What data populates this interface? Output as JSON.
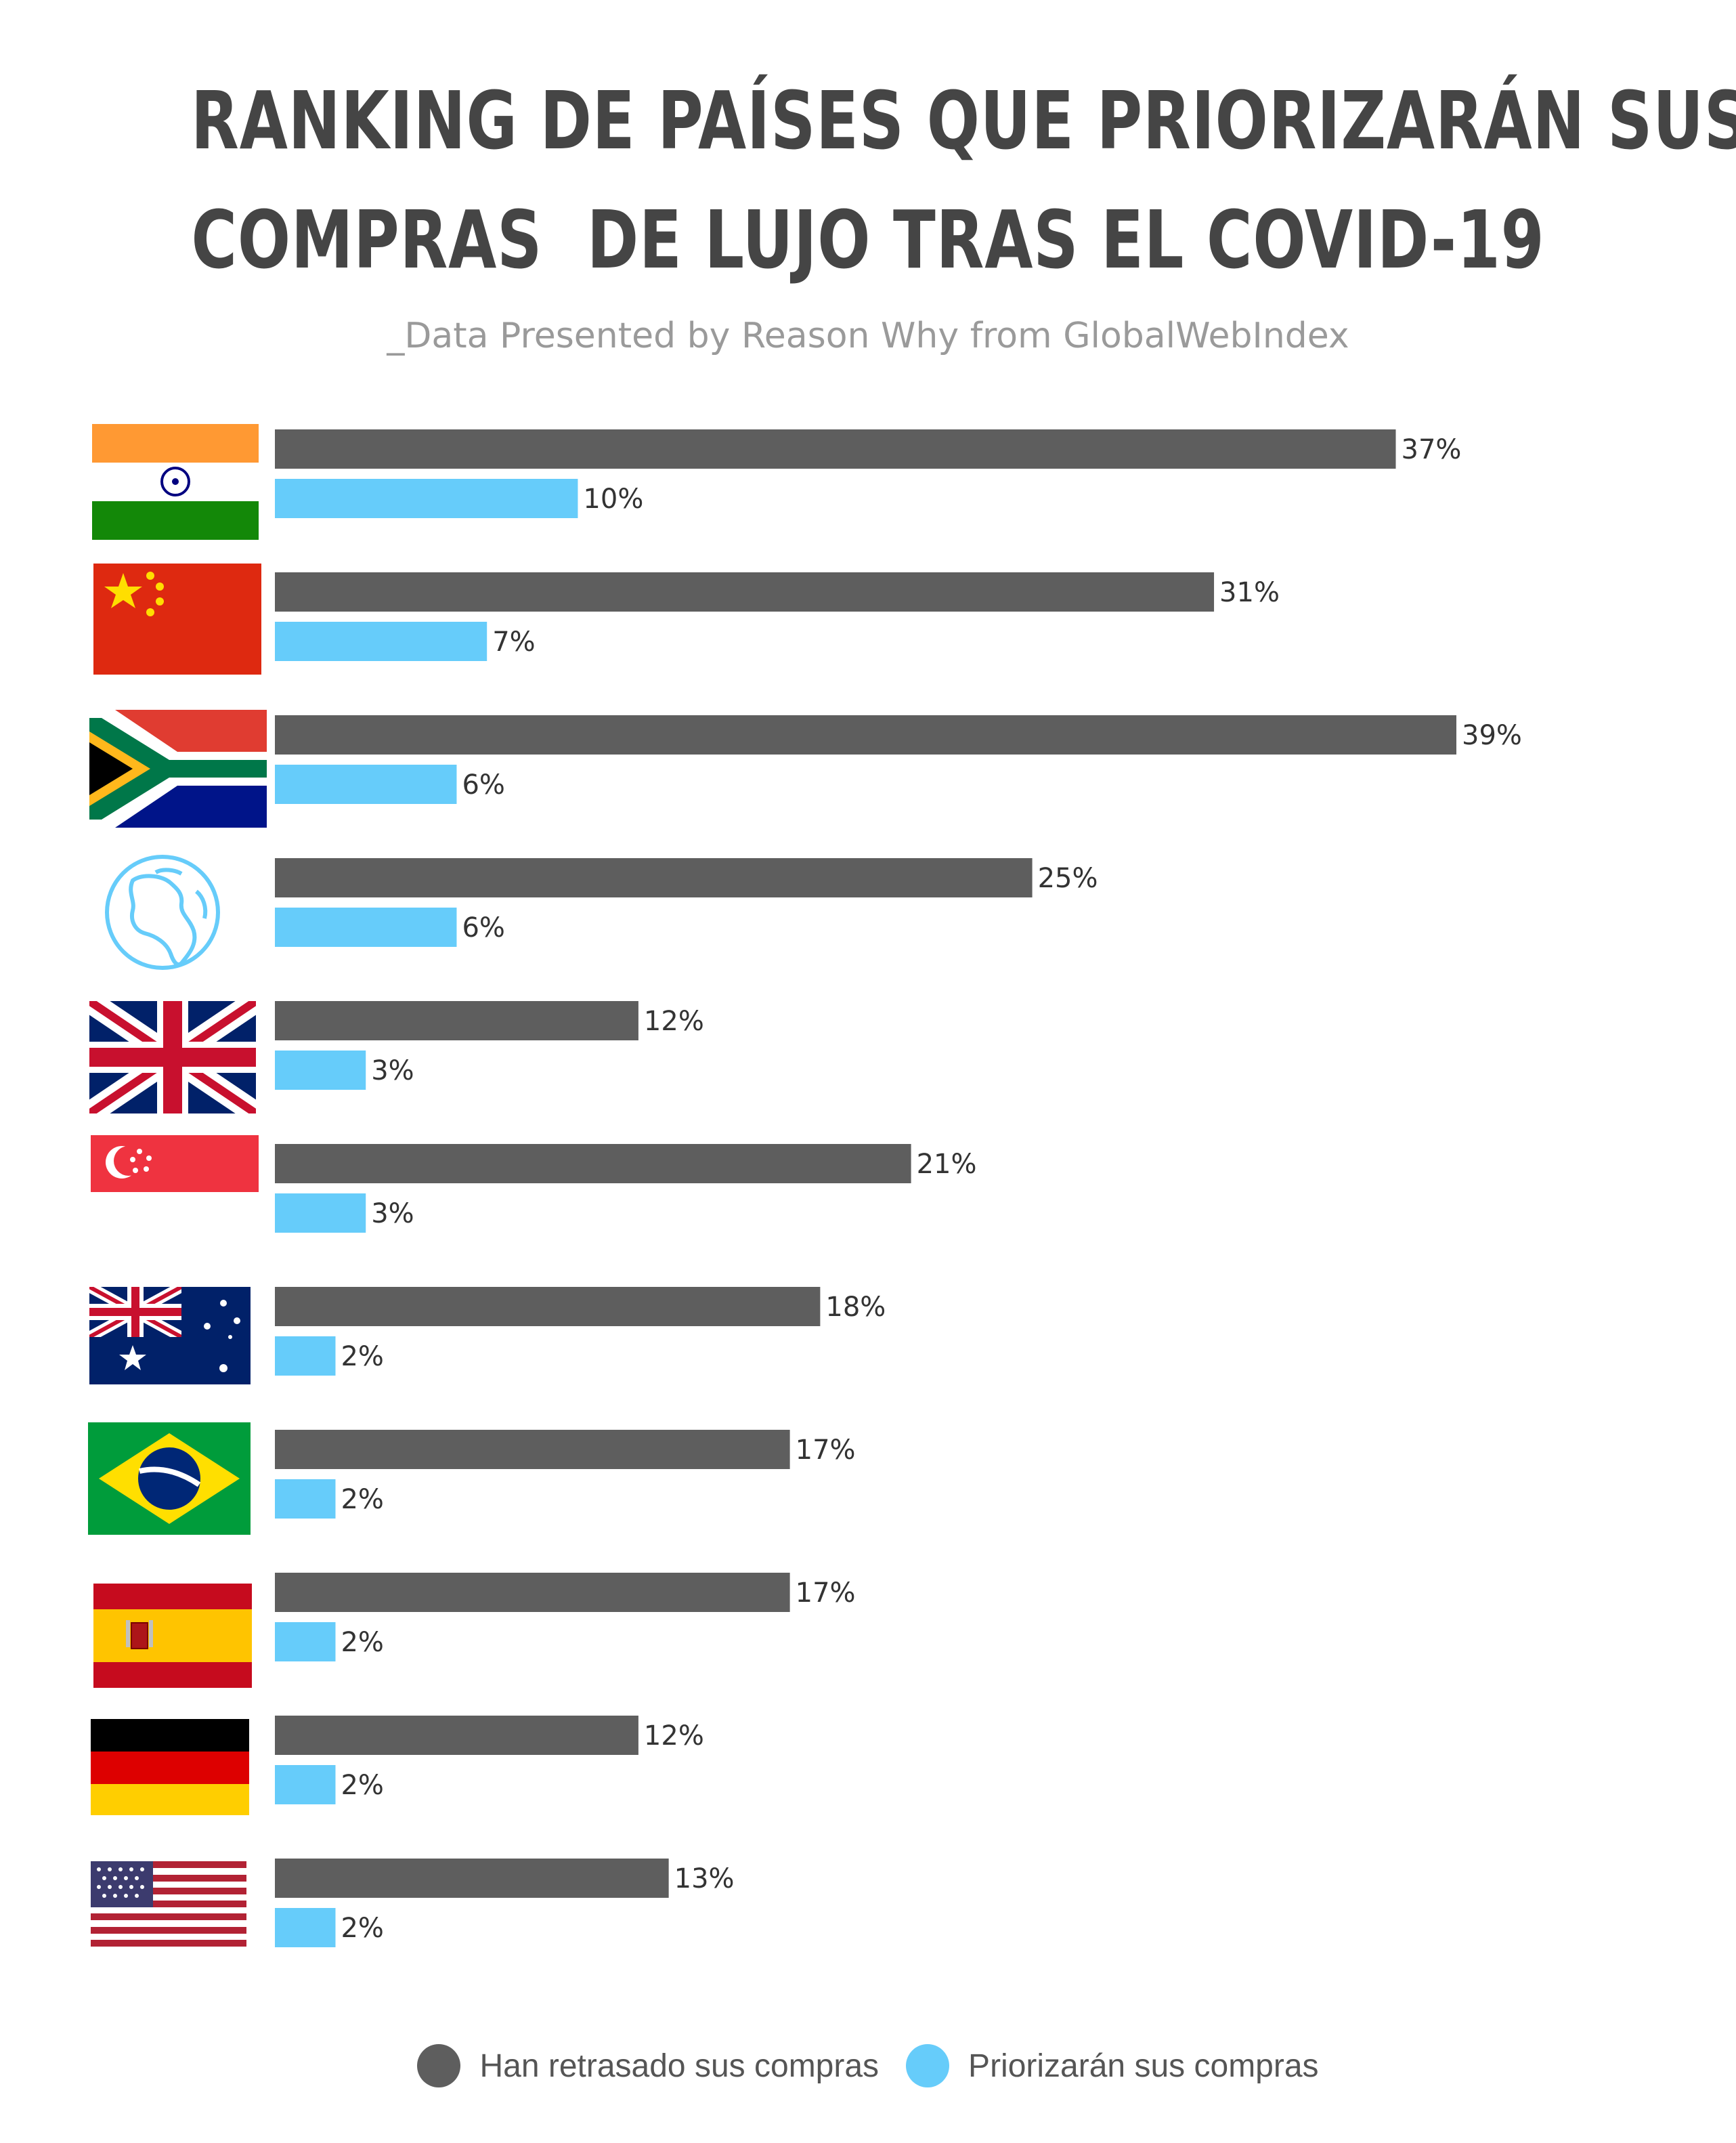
{
  "title_lines": [
    "RANKING DE PAÍSES QUE PRIORIZARÁN SUS",
    "COMPRAS  DE LUJO TRAS EL COVID-19"
  ],
  "subtitle": "_Data Presented by Reason Why from GlobalWebIndex",
  "colors": {
    "delayed": "#5e5e5e",
    "prioritize": "#66ccfa",
    "title": "#454545"
  },
  "chart_data": {
    "type": "bar",
    "orientation": "horizontal",
    "categories": [
      "India",
      "China",
      "South Africa",
      "Global",
      "United Kingdom",
      "Singapore",
      "Australia",
      "Brazil",
      "Spain",
      "Germany",
      "United States"
    ],
    "category_icons": [
      "india-flag",
      "china-flag",
      "south-africa-flag",
      "globe-icon",
      "uk-flag",
      "singapore-flag",
      "australia-flag",
      "brazil-flag",
      "spain-flag",
      "germany-flag",
      "usa-flag"
    ],
    "series": [
      {
        "name": "Han retrasado sus compras",
        "values": [
          37,
          31,
          39,
          25,
          12,
          21,
          18,
          17,
          17,
          12,
          13
        ]
      },
      {
        "name": "Priorizarán sus compras",
        "values": [
          10,
          7,
          6,
          6,
          3,
          3,
          2,
          2,
          2,
          2,
          2
        ]
      }
    ],
    "value_suffix": "%",
    "xlim": [
      0,
      40
    ],
    "grid": false,
    "legend_position": "bottom-center"
  },
  "legend": [
    {
      "label": "Han retrasado sus compras",
      "color": "#5e5e5e"
    },
    {
      "label": "Priorizarán sus compras",
      "color": "#66ccfa"
    }
  ]
}
